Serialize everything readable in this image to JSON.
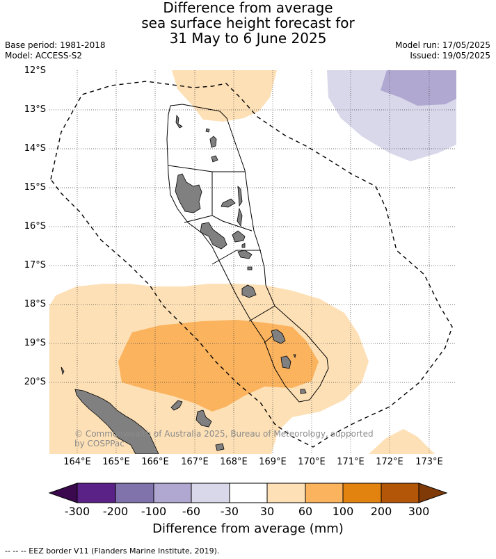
{
  "title_lines": [
    "Difference from average",
    "sea surface height forecast for",
    "31 May to 6 June 2025"
  ],
  "base_period": "Base period: 1981-2018",
  "model": "Model: ACCESS-S2",
  "model_run": "Model run: 17/05/2025",
  "issued": "Issued: 19/05/2025",
  "lat_ticks": [
    "12°S",
    "13°S",
    "14°S",
    "15°S",
    "16°S",
    "17°S",
    "18°S",
    "19°S",
    "20°S"
  ],
  "lon_ticks": [
    "164°E",
    "165°E",
    "166°E",
    "167°E",
    "168°E",
    "169°E",
    "170°E",
    "171°E",
    "172°E",
    "173°E"
  ],
  "credit": "© Commonwealth of Australia 2025, Bureau of Meteorology, supported by COSPPac",
  "colorbar": {
    "title": "Difference from average (mm)",
    "labels": [
      "-300",
      "-200",
      "-100",
      "-60",
      "-30",
      "30",
      "60",
      "100",
      "200",
      "300"
    ],
    "colors": [
      "#3b0a4e",
      "#5a2287",
      "#8072ab",
      "#b0a8d0",
      "#d8d8ea",
      "#ffffff",
      "#fde0b6",
      "#fbb35e",
      "#e3830f",
      "#b35608",
      "#7f3a08"
    ]
  },
  "footer": "-- -- -- EEZ border V11 (Flanders Marine Institute, 2019).",
  "legend_items": [
    "EEZ border"
  ]
}
